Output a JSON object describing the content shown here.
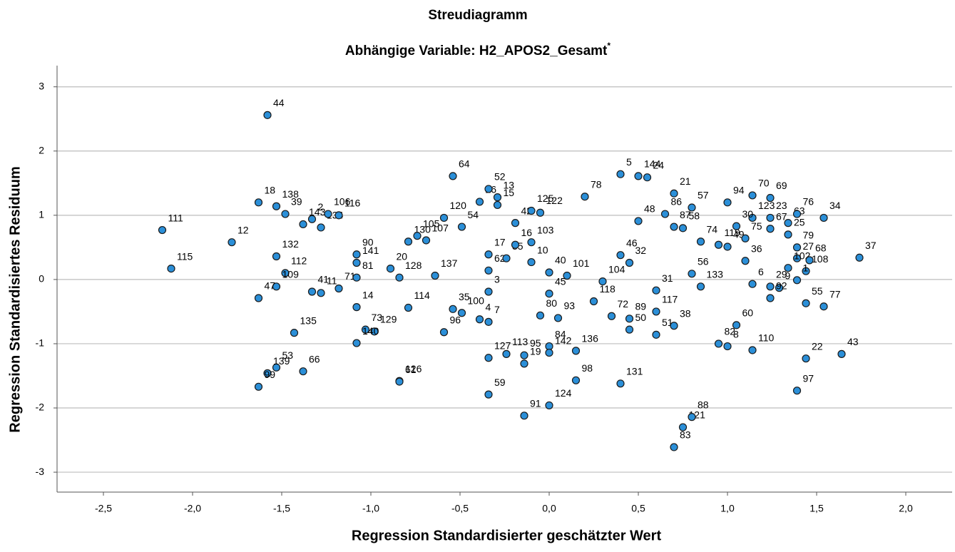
{
  "chart_data": {
    "type": "scatter",
    "title": "Streudiagramm",
    "subtitle": "Abhängige Variable: H2_APOS2_Gesamt",
    "subtitle_mark": "*",
    "x_label": "Regression Standardisierter geschätzter Wert",
    "y_label": "Regression Standardisiertes Residuum",
    "color": "#2b8fd8",
    "edge_color": "#1a1a1a",
    "grid": true,
    "xlim": [
      -2.76,
      2.26
    ],
    "ylim": [
      -3.31,
      3.33
    ],
    "xticks": [
      {
        "value": -2.5,
        "label": "-2,5"
      },
      {
        "value": -2.0,
        "label": "-2,0"
      },
      {
        "value": -1.5,
        "label": "-1,5"
      },
      {
        "value": -1.0,
        "label": "-1,0"
      },
      {
        "value": -0.5,
        "label": "-0,5"
      },
      {
        "value": 0,
        "label": "0,0"
      },
      {
        "value": 0.5,
        "label": "0,5"
      },
      {
        "value": 1.0,
        "label": "1,0"
      },
      {
        "value": 1.5,
        "label": "1,5"
      },
      {
        "value": 2.0,
        "label": "2,0"
      }
    ],
    "yticks": [
      3,
      2,
      1,
      0,
      -1,
      -2,
      -3
    ],
    "labels": [
      "44",
      "111",
      "115",
      "12",
      "39",
      "18",
      "138",
      "143",
      "2",
      "134",
      "106",
      "116",
      "132",
      "112",
      "109",
      "47",
      "41",
      "11",
      "71",
      "141",
      "90",
      "81",
      "14",
      "73",
      "129",
      "140",
      "135",
      "53",
      "139",
      "99",
      "66",
      "20",
      "128",
      "114",
      "126",
      "61",
      "130",
      "105",
      "107",
      "120",
      "137",
      "100",
      "96",
      "35",
      "4",
      "7",
      "127",
      "59",
      "64",
      "26",
      "54",
      "52",
      "13",
      "15",
      "17",
      "62",
      "3",
      "85",
      "16",
      "42",
      "103",
      "125",
      "122",
      "10",
      "40",
      "101",
      "45",
      "80",
      "93",
      "84",
      "95",
      "113",
      "19",
      "142",
      "91",
      "124",
      "136",
      "98",
      "78",
      "118",
      "104",
      "72",
      "46",
      "32",
      "89",
      "117",
      "31",
      "50",
      "51",
      "38",
      "131",
      "5",
      "144",
      "24",
      "21",
      "57",
      "48",
      "86",
      "87",
      "58",
      "56",
      "133",
      "74",
      "119",
      "49",
      "75",
      "36",
      "83",
      "121",
      "88",
      "94",
      "70",
      "69",
      "123",
      "30",
      "23",
      "63",
      "67",
      "25",
      "76",
      "34",
      "79",
      "27",
      "102",
      "108",
      "1",
      "68",
      "6",
      "29",
      "9",
      "92",
      "55",
      "77",
      "60",
      "82",
      "8",
      "110",
      "22",
      "97",
      "43",
      "37"
    ],
    "x": [
      -1.58,
      -2.17,
      -2.12,
      -1.78,
      -1.48,
      -1.63,
      -1.53,
      -1.38,
      -1.33,
      -1.28,
      -1.24,
      -1.18,
      -1.53,
      -1.48,
      -1.53,
      -1.63,
      -1.33,
      -1.28,
      -1.18,
      -1.08,
      -1.08,
      -1.08,
      -1.08,
      -1.03,
      -0.98,
      -1.08,
      -1.43,
      -1.53,
      -1.58,
      -1.63,
      -1.38,
      -0.89,
      -0.84,
      -0.79,
      -0.84,
      -0.84,
      -0.79,
      -0.74,
      -0.69,
      -0.59,
      -0.64,
      -0.49,
      -0.59,
      -0.54,
      -0.39,
      -0.34,
      -0.34,
      -0.34,
      -0.54,
      -0.39,
      -0.49,
      -0.34,
      -0.29,
      -0.29,
      -0.34,
      -0.34,
      -0.34,
      -0.24,
      -0.19,
      -0.19,
      -0.1,
      -0.1,
      -0.05,
      -0.1,
      0,
      0.1,
      0,
      -0.05,
      0.05,
      0,
      -0.14,
      -0.24,
      -0.14,
      0,
      -0.14,
      0,
      0.15,
      0.15,
      0.2,
      0.25,
      0.3,
      0.35,
      0.4,
      0.45,
      0.45,
      0.6,
      0.6,
      0.45,
      0.6,
      0.7,
      0.4,
      0.4,
      0.5,
      0.55,
      0.7,
      0.8,
      0.5,
      0.65,
      0.7,
      0.75,
      0.8,
      0.85,
      0.85,
      0.95,
      1.0,
      1.1,
      1.1,
      0.7,
      0.75,
      0.8,
      1.0,
      1.14,
      1.24,
      1.14,
      1.05,
      1.24,
      1.34,
      1.24,
      1.34,
      1.39,
      1.54,
      1.39,
      1.39,
      1.34,
      1.44,
      1.39,
      1.46,
      1.14,
      1.24,
      1.29,
      1.24,
      1.44,
      1.54,
      1.05,
      0.95,
      1.0,
      1.14,
      1.44,
      1.39,
      1.64,
      1.74
    ],
    "y": [
      2.56,
      0.77,
      0.17,
      0.58,
      1.02,
      1.2,
      1.14,
      0.86,
      0.94,
      0.81,
      1.02,
      1.0,
      0.36,
      0.1,
      -0.11,
      -0.29,
      -0.19,
      -0.21,
      -0.14,
      0.26,
      0.39,
      0.03,
      -0.43,
      -0.78,
      -0.81,
      -0.99,
      -0.83,
      -1.37,
      -1.46,
      -1.67,
      -1.43,
      0.17,
      0.03,
      -0.44,
      -1.58,
      -1.59,
      0.59,
      0.68,
      0.61,
      0.96,
      0.06,
      -0.52,
      -0.82,
      -0.46,
      -0.62,
      -0.66,
      -1.22,
      -1.79,
      1.61,
      1.21,
      0.82,
      1.41,
      1.28,
      1.16,
      0.39,
      0.14,
      -0.19,
      0.33,
      0.54,
      0.88,
      0.58,
      1.07,
      1.04,
      0.27,
      0.11,
      0.06,
      -0.22,
      -0.56,
      -0.6,
      -1.04,
      -1.18,
      -1.16,
      -1.31,
      -1.14,
      -2.12,
      -1.96,
      -1.11,
      -1.57,
      1.29,
      -0.34,
      -0.03,
      -0.57,
      0.38,
      0.26,
      -0.61,
      -0.5,
      -0.17,
      -0.78,
      -0.86,
      -0.72,
      -1.62,
      1.64,
      1.61,
      1.59,
      1.34,
      1.12,
      0.91,
      1.02,
      0.82,
      0.8,
      0.09,
      -0.11,
      0.59,
      0.54,
      0.51,
      0.64,
      0.29,
      -2.61,
      -2.3,
      -2.14,
      1.2,
      1.31,
      1.27,
      0.96,
      0.83,
      0.96,
      0.88,
      0.79,
      0.7,
      1.02,
      0.96,
      0.5,
      0.33,
      0.18,
      0.13,
      -0.01,
      0.3,
      -0.07,
      -0.11,
      -0.13,
      -0.29,
      -0.37,
      -0.42,
      -0.71,
      -1.0,
      -1.04,
      -1.1,
      -1.23,
      -1.73,
      -1.16,
      0.34
    ]
  }
}
